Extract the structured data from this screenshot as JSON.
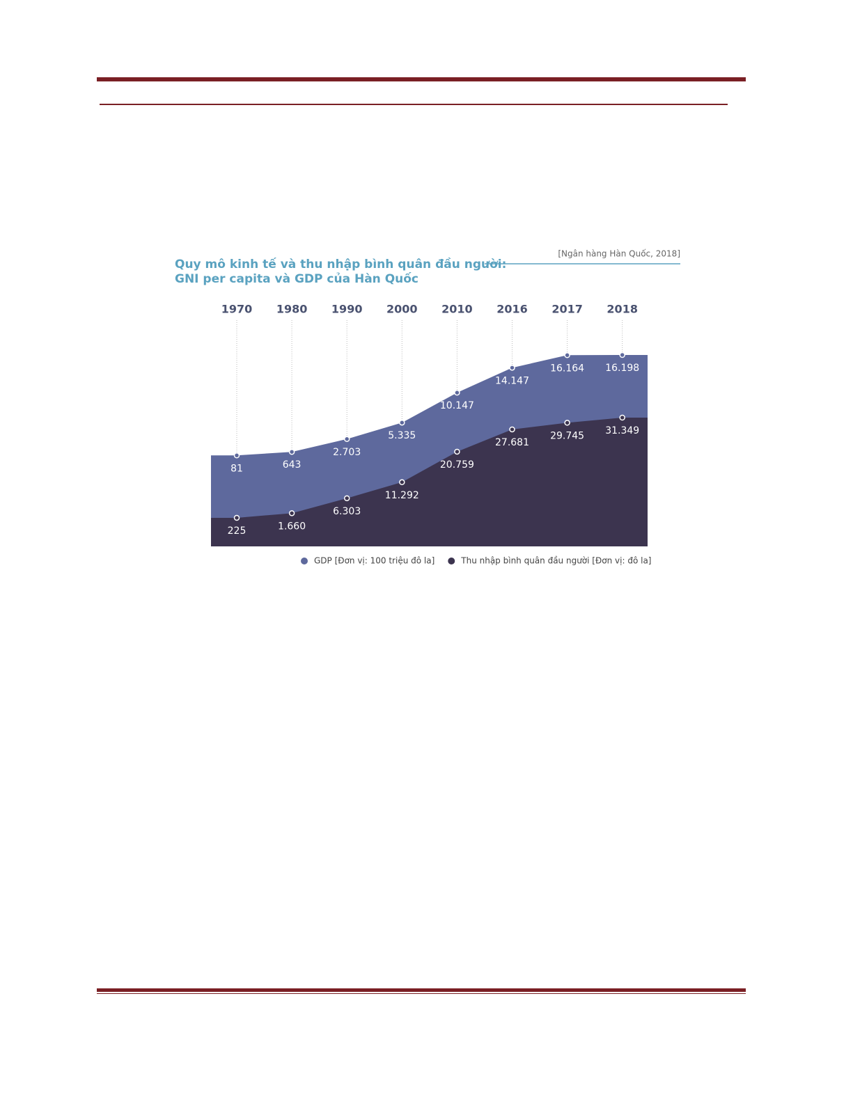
{
  "chart_data": {
    "type": "area",
    "title": "Quy mô kinh tế và thu nhập bình quân đầu người:",
    "subtitle": "GNI per capita và GDP của Hàn Quốc",
    "source": "[Ngân hàng Hàn Quốc, 2018]",
    "categories": [
      "1970",
      "1980",
      "1990",
      "2000",
      "2010",
      "2016",
      "2017",
      "2018"
    ],
    "series": [
      {
        "name": "GDP [Đơn vị: 100 triệu đô la]",
        "color": "#5e699d",
        "values": [
          81,
          643,
          2703,
          5335,
          10147,
          14147,
          16164,
          16198
        ],
        "value_labels": [
          "81",
          "643",
          "2.703",
          "5.335",
          "10.147",
          "14.147",
          "16.164",
          "16.198"
        ]
      },
      {
        "name": "Thu nhập bình quân đầu người [Đơn vị: đô la]",
        "color": "#3c344f",
        "values": [
          225,
          1660,
          6303,
          11292,
          20759,
          27681,
          29745,
          31349
        ],
        "value_labels": [
          "225",
          "1.660",
          "6.303",
          "11.292",
          "20.759",
          "27.681",
          "29.745",
          "31.349"
        ]
      }
    ]
  }
}
